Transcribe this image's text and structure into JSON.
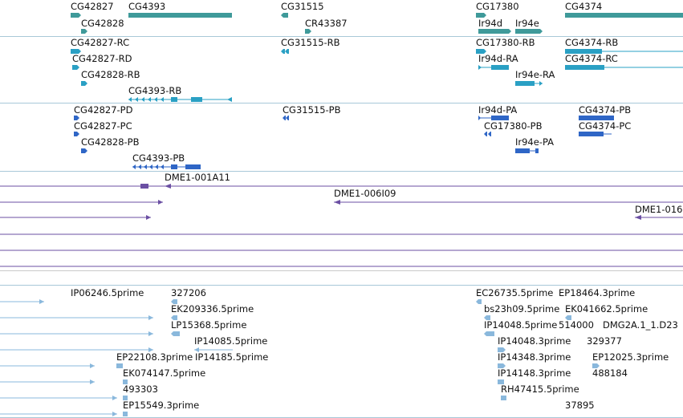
{
  "colors": {
    "gene": "#3f9a9a",
    "transcript_rna": "#2aa0c4",
    "transcript_protein": "#2f66c6",
    "clone": "#6b4fa3",
    "est": "#8ab8dc",
    "separator": "#a8c8d8"
  },
  "gene_track": {
    "labels": [
      "CG42827",
      "CG4393",
      "CG31515",
      "CG17380",
      "CG4374",
      "CG42828",
      "CR43387",
      "Ir94d",
      "Ir94e"
    ]
  },
  "rna_track": {
    "labels": [
      "CG42827-RC",
      "CG31515-RB",
      "CG17380-RB",
      "CG4374-RB",
      "CG42827-RD",
      "Ir94d-RA",
      "CG4374-RC",
      "CG42828-RB",
      "Ir94e-RA",
      "CG4393-RB"
    ]
  },
  "protein_track": {
    "labels": [
      "CG42827-PD",
      "CG31515-PB",
      "Ir94d-PA",
      "CG4374-PB",
      "CG42827-PC",
      "CG17380-PB",
      "CG4374-PC",
      "CG42828-PB",
      "Ir94e-PA",
      "CG4393-PB"
    ]
  },
  "clone_track": {
    "labels": [
      "DME1-001A11",
      "DME1-006I09",
      "DME1-016"
    ]
  },
  "est_track": {
    "labels": [
      "IP06246.5prime",
      "327206",
      "EC26735.5prime",
      "EP18464.3prime",
      "EK209336.5prime",
      "bs23h09.5prime",
      "EK041662.5prime",
      "LP15368.5prime",
      "IP14048.5prime",
      "514000",
      "DMG2A.1_1.D23",
      "IP14085.5prime",
      "IP14048.3prime",
      "329377",
      "EP22108.3prime",
      "IP14185.5prime",
      "IP14348.3prime",
      "EP12025.3prime",
      "EK074147.5prime",
      "IP14148.3prime",
      "488184",
      "493303",
      "RH47415.5prime",
      "EP15549.3prime",
      "37895"
    ]
  }
}
